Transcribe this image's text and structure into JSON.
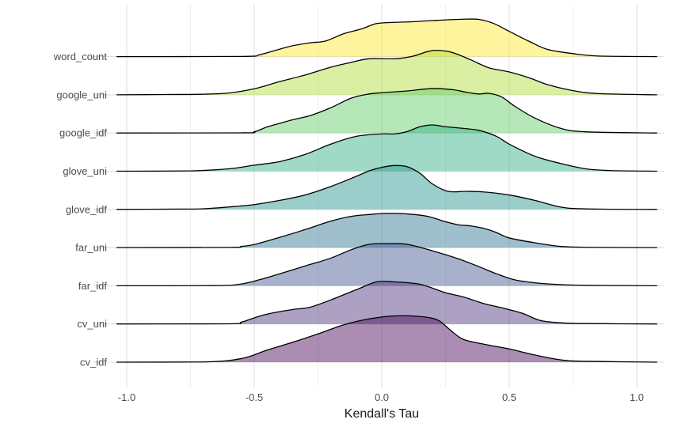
{
  "chart_data": {
    "type": "ridgeline",
    "xlabel": "Kendall's Tau",
    "ylabel": "",
    "title": "",
    "xlim": [
      -1.06,
      1.1
    ],
    "x_ticks": [
      -1.0,
      -0.5,
      0.0,
      0.5,
      1.0
    ],
    "x_tick_labels": [
      "-1.0",
      "-0.5",
      "0.0",
      "0.5",
      "1.0"
    ],
    "grid": true,
    "legend": "none",
    "categories": [
      "cv_idf",
      "cv_uni",
      "far_idf",
      "far_uni",
      "glove_idf",
      "glove_uni",
      "google_idf",
      "google_uni",
      "word_count"
    ],
    "series": [
      {
        "category": "cv_idf",
        "color": "#440154",
        "density": [
          [
            -1.04,
            0
          ],
          [
            -0.7,
            0.003
          ],
          [
            -0.55,
            0.06
          ],
          [
            -0.45,
            0.2
          ],
          [
            -0.35,
            0.33
          ],
          [
            -0.25,
            0.47
          ],
          [
            -0.15,
            0.62
          ],
          [
            -0.05,
            0.72
          ],
          [
            0.05,
            0.77
          ],
          [
            0.15,
            0.76
          ],
          [
            0.22,
            0.7
          ],
          [
            0.27,
            0.53
          ],
          [
            0.32,
            0.38
          ],
          [
            0.4,
            0.3
          ],
          [
            0.5,
            0.22
          ],
          [
            0.6,
            0.12
          ],
          [
            0.7,
            0.04
          ],
          [
            0.8,
            0.015
          ],
          [
            1.08,
            0
          ]
        ]
      },
      {
        "category": "cv_uni",
        "color": "#472d7b",
        "density": [
          [
            -1.04,
            0
          ],
          [
            -0.6,
            0.003
          ],
          [
            -0.55,
            0.03
          ],
          [
            -0.48,
            0.13
          ],
          [
            -0.42,
            0.19
          ],
          [
            -0.35,
            0.24
          ],
          [
            -0.28,
            0.28
          ],
          [
            -0.2,
            0.4
          ],
          [
            -0.1,
            0.57
          ],
          [
            -0.02,
            0.7
          ],
          [
            0.05,
            0.7
          ],
          [
            0.15,
            0.66
          ],
          [
            0.25,
            0.52
          ],
          [
            0.32,
            0.45
          ],
          [
            0.4,
            0.34
          ],
          [
            0.47,
            0.27
          ],
          [
            0.55,
            0.18
          ],
          [
            0.62,
            0.06
          ],
          [
            0.7,
            0.02
          ],
          [
            0.8,
            0.007
          ],
          [
            1.08,
            0
          ]
        ]
      },
      {
        "category": "far_idf",
        "color": "#3b528b",
        "density": [
          [
            -1.04,
            0
          ],
          [
            -0.65,
            0.003
          ],
          [
            -0.55,
            0.03
          ],
          [
            -0.48,
            0.1
          ],
          [
            -0.4,
            0.2
          ],
          [
            -0.3,
            0.33
          ],
          [
            -0.2,
            0.46
          ],
          [
            -0.12,
            0.6
          ],
          [
            -0.05,
            0.69
          ],
          [
            0.02,
            0.7
          ],
          [
            0.1,
            0.69
          ],
          [
            0.2,
            0.58
          ],
          [
            0.3,
            0.45
          ],
          [
            0.38,
            0.32
          ],
          [
            0.45,
            0.2
          ],
          [
            0.52,
            0.1
          ],
          [
            0.6,
            0.05
          ],
          [
            0.7,
            0.02
          ],
          [
            0.8,
            0.008
          ],
          [
            1.08,
            0
          ]
        ]
      },
      {
        "category": "far_uni",
        "color": "#2c728e",
        "density": [
          [
            -1.04,
            0
          ],
          [
            -0.6,
            0.003
          ],
          [
            -0.55,
            0.02
          ],
          [
            -0.5,
            0.05
          ],
          [
            -0.4,
            0.17
          ],
          [
            -0.3,
            0.3
          ],
          [
            -0.2,
            0.44
          ],
          [
            -0.12,
            0.52
          ],
          [
            -0.05,
            0.55
          ],
          [
            0.02,
            0.57
          ],
          [
            0.1,
            0.56
          ],
          [
            0.18,
            0.52
          ],
          [
            0.25,
            0.43
          ],
          [
            0.3,
            0.38
          ],
          [
            0.35,
            0.36
          ],
          [
            0.4,
            0.32
          ],
          [
            0.45,
            0.25
          ],
          [
            0.5,
            0.16
          ],
          [
            0.6,
            0.08
          ],
          [
            0.7,
            0.02
          ],
          [
            0.8,
            0.005
          ],
          [
            1.08,
            0
          ]
        ]
      },
      {
        "category": "glove_idf",
        "color": "#21918c",
        "density": [
          [
            -1.04,
            0
          ],
          [
            -0.8,
            0.005
          ],
          [
            -0.7,
            0.01
          ],
          [
            -0.6,
            0.04
          ],
          [
            -0.5,
            0.08
          ],
          [
            -0.4,
            0.15
          ],
          [
            -0.3,
            0.24
          ],
          [
            -0.2,
            0.38
          ],
          [
            -0.1,
            0.55
          ],
          [
            -0.05,
            0.64
          ],
          [
            0.0,
            0.7
          ],
          [
            0.05,
            0.73
          ],
          [
            0.1,
            0.71
          ],
          [
            0.15,
            0.6
          ],
          [
            0.2,
            0.42
          ],
          [
            0.26,
            0.3
          ],
          [
            0.33,
            0.3
          ],
          [
            0.4,
            0.29
          ],
          [
            0.5,
            0.24
          ],
          [
            0.6,
            0.15
          ],
          [
            0.7,
            0.04
          ],
          [
            0.8,
            0.008
          ],
          [
            1.08,
            0
          ]
        ]
      },
      {
        "category": "glove_uni",
        "color": "#28ae80",
        "density": [
          [
            -1.04,
            0
          ],
          [
            -0.75,
            0.005
          ],
          [
            -0.6,
            0.04
          ],
          [
            -0.5,
            0.1
          ],
          [
            -0.4,
            0.16
          ],
          [
            -0.3,
            0.28
          ],
          [
            -0.2,
            0.45
          ],
          [
            -0.1,
            0.58
          ],
          [
            0.0,
            0.62
          ],
          [
            0.05,
            0.62
          ],
          [
            0.1,
            0.66
          ],
          [
            0.15,
            0.74
          ],
          [
            0.2,
            0.77
          ],
          [
            0.25,
            0.74
          ],
          [
            0.3,
            0.72
          ],
          [
            0.38,
            0.68
          ],
          [
            0.45,
            0.58
          ],
          [
            0.5,
            0.45
          ],
          [
            0.6,
            0.25
          ],
          [
            0.7,
            0.13
          ],
          [
            0.8,
            0.04
          ],
          [
            0.9,
            0.01
          ],
          [
            1.08,
            0
          ]
        ]
      },
      {
        "category": "google_idf",
        "color": "#5ec962",
        "density": [
          [
            -1.04,
            0
          ],
          [
            -0.55,
            0.003
          ],
          [
            -0.5,
            0.02
          ],
          [
            -0.45,
            0.1
          ],
          [
            -0.4,
            0.16
          ],
          [
            -0.35,
            0.22
          ],
          [
            -0.28,
            0.29
          ],
          [
            -0.2,
            0.42
          ],
          [
            -0.12,
            0.58
          ],
          [
            -0.05,
            0.65
          ],
          [
            0.0,
            0.67
          ],
          [
            0.1,
            0.7
          ],
          [
            0.2,
            0.74
          ],
          [
            0.28,
            0.72
          ],
          [
            0.33,
            0.68
          ],
          [
            0.38,
            0.65
          ],
          [
            0.42,
            0.66
          ],
          [
            0.47,
            0.6
          ],
          [
            0.52,
            0.45
          ],
          [
            0.6,
            0.25
          ],
          [
            0.7,
            0.08
          ],
          [
            0.8,
            0.02
          ],
          [
            1.08,
            0
          ]
        ]
      },
      {
        "category": "google_uni",
        "color": "#addc30",
        "density": [
          [
            -1.04,
            0
          ],
          [
            -0.85,
            0.005
          ],
          [
            -0.7,
            0.01
          ],
          [
            -0.6,
            0.03
          ],
          [
            -0.5,
            0.1
          ],
          [
            -0.4,
            0.22
          ],
          [
            -0.3,
            0.33
          ],
          [
            -0.2,
            0.46
          ],
          [
            -0.12,
            0.54
          ],
          [
            -0.05,
            0.6
          ],
          [
            0.05,
            0.6
          ],
          [
            0.12,
            0.64
          ],
          [
            0.18,
            0.72
          ],
          [
            0.22,
            0.74
          ],
          [
            0.28,
            0.7
          ],
          [
            0.35,
            0.58
          ],
          [
            0.42,
            0.45
          ],
          [
            0.5,
            0.38
          ],
          [
            0.58,
            0.28
          ],
          [
            0.65,
            0.17
          ],
          [
            0.75,
            0.07
          ],
          [
            0.85,
            0.02
          ],
          [
            1.08,
            0
          ]
        ]
      },
      {
        "category": "word_count",
        "color": "#fde725",
        "density": [
          [
            -1.04,
            0
          ],
          [
            -0.55,
            0.003
          ],
          [
            -0.48,
            0.03
          ],
          [
            -0.42,
            0.1
          ],
          [
            -0.35,
            0.18
          ],
          [
            -0.28,
            0.23
          ],
          [
            -0.22,
            0.26
          ],
          [
            -0.15,
            0.38
          ],
          [
            -0.08,
            0.46
          ],
          [
            -0.02,
            0.55
          ],
          [
            0.05,
            0.57
          ],
          [
            0.12,
            0.58
          ],
          [
            0.2,
            0.6
          ],
          [
            0.3,
            0.62
          ],
          [
            0.38,
            0.62
          ],
          [
            0.44,
            0.55
          ],
          [
            0.5,
            0.42
          ],
          [
            0.58,
            0.25
          ],
          [
            0.65,
            0.12
          ],
          [
            0.75,
            0.05
          ],
          [
            0.85,
            0.01
          ],
          [
            1.08,
            0
          ]
        ]
      }
    ]
  }
}
